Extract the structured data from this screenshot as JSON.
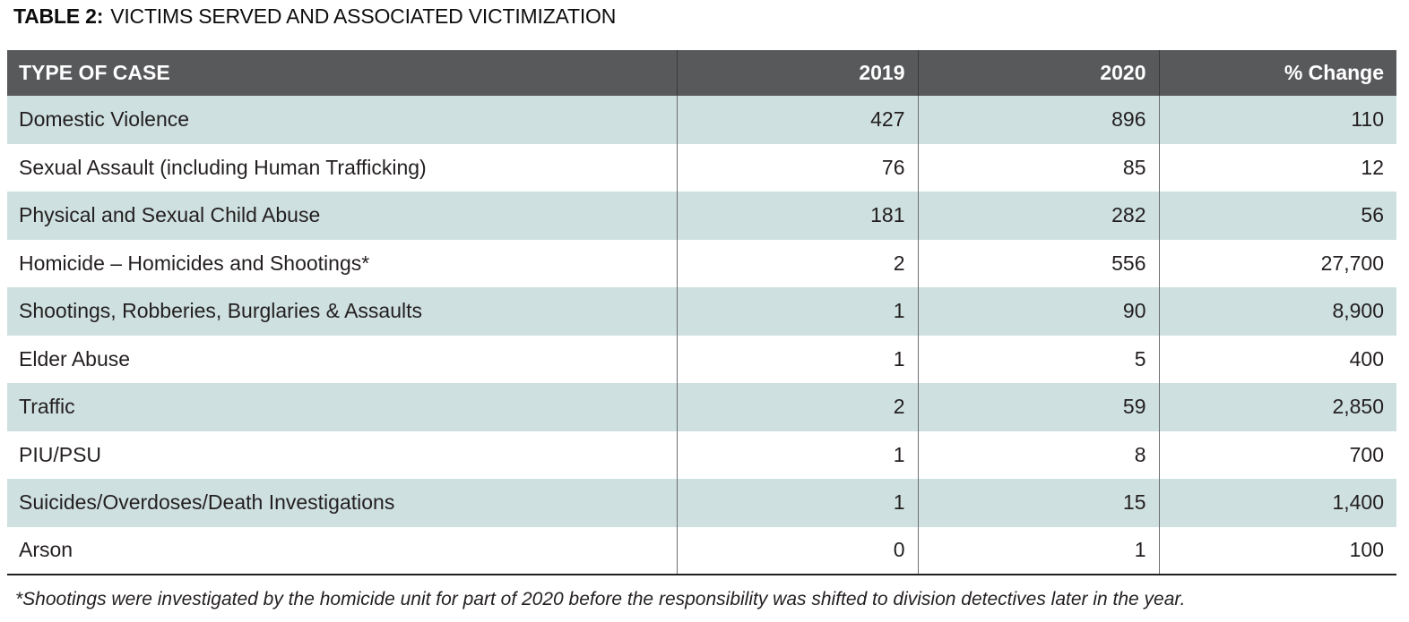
{
  "title": {
    "label": "TABLE 2:",
    "text": "VICTIMS SERVED AND ASSOCIATED VICTIMIZATION"
  },
  "table": {
    "columns": [
      "TYPE OF CASE",
      "2019",
      "2020",
      "% Change"
    ],
    "rows": [
      [
        "Domestic Violence",
        "427",
        "896",
        "110"
      ],
      [
        "Sexual Assault (including Human Trafficking)",
        "76",
        "85",
        "12"
      ],
      [
        "Physical and Sexual Child Abuse",
        "181",
        "282",
        "56"
      ],
      [
        "Homicide – Homicides and Shootings*",
        "2",
        "556",
        "27,700"
      ],
      [
        "Shootings, Robberies, Burglaries & Assaults",
        "1",
        "90",
        "8,900"
      ],
      [
        "Elder Abuse",
        "1",
        "5",
        "400"
      ],
      [
        "Traffic",
        "2",
        "59",
        "2,850"
      ],
      [
        "PIU/PSU",
        "1",
        "8",
        "700"
      ],
      [
        "Suicides/Overdoses/Death Investigations",
        "1",
        "15",
        "1,400"
      ],
      [
        "Arson",
        "0",
        "1",
        "100"
      ]
    ]
  },
  "footnote": "*Shootings were investigated by the homicide unit for part of 2020 before the responsibility was shifted to division detectives later in the year.",
  "colors": {
    "header_bg": "#58595b",
    "header_text": "#ffffff",
    "row_shade": "#cfe0e0",
    "row_plain": "#ffffff",
    "divider": "#6d6e70",
    "header_divider": "#3a3a3c",
    "body_text": "#231f20",
    "bottom_rule": "#231f20"
  }
}
